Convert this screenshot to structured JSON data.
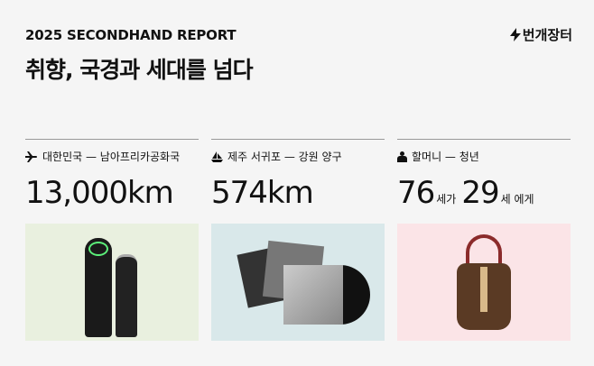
{
  "header": {
    "kicker": "2025 SECONDHAND REPORT",
    "title": "취향, 국경과 세대를 넘다",
    "logo": "번개장터",
    "logo_icon": "lightning-icon"
  },
  "columns": [
    {
      "icon": "airplane-icon",
      "label": "대한민국 — 남아프리카공화국",
      "value": "13,000km",
      "card_color": "#e9f0df"
    },
    {
      "icon": "sailboat-icon",
      "label": "제주 서귀포 — 강원 양구",
      "value": "574km",
      "card_color": "#d9e8ea"
    },
    {
      "icon": "person-icon",
      "label": "할머니 — 청년",
      "value_a": "76",
      "unit_a": "세가",
      "value_b": "29",
      "unit_b": "세 에게",
      "card_color": "#fbe4e7"
    }
  ]
}
